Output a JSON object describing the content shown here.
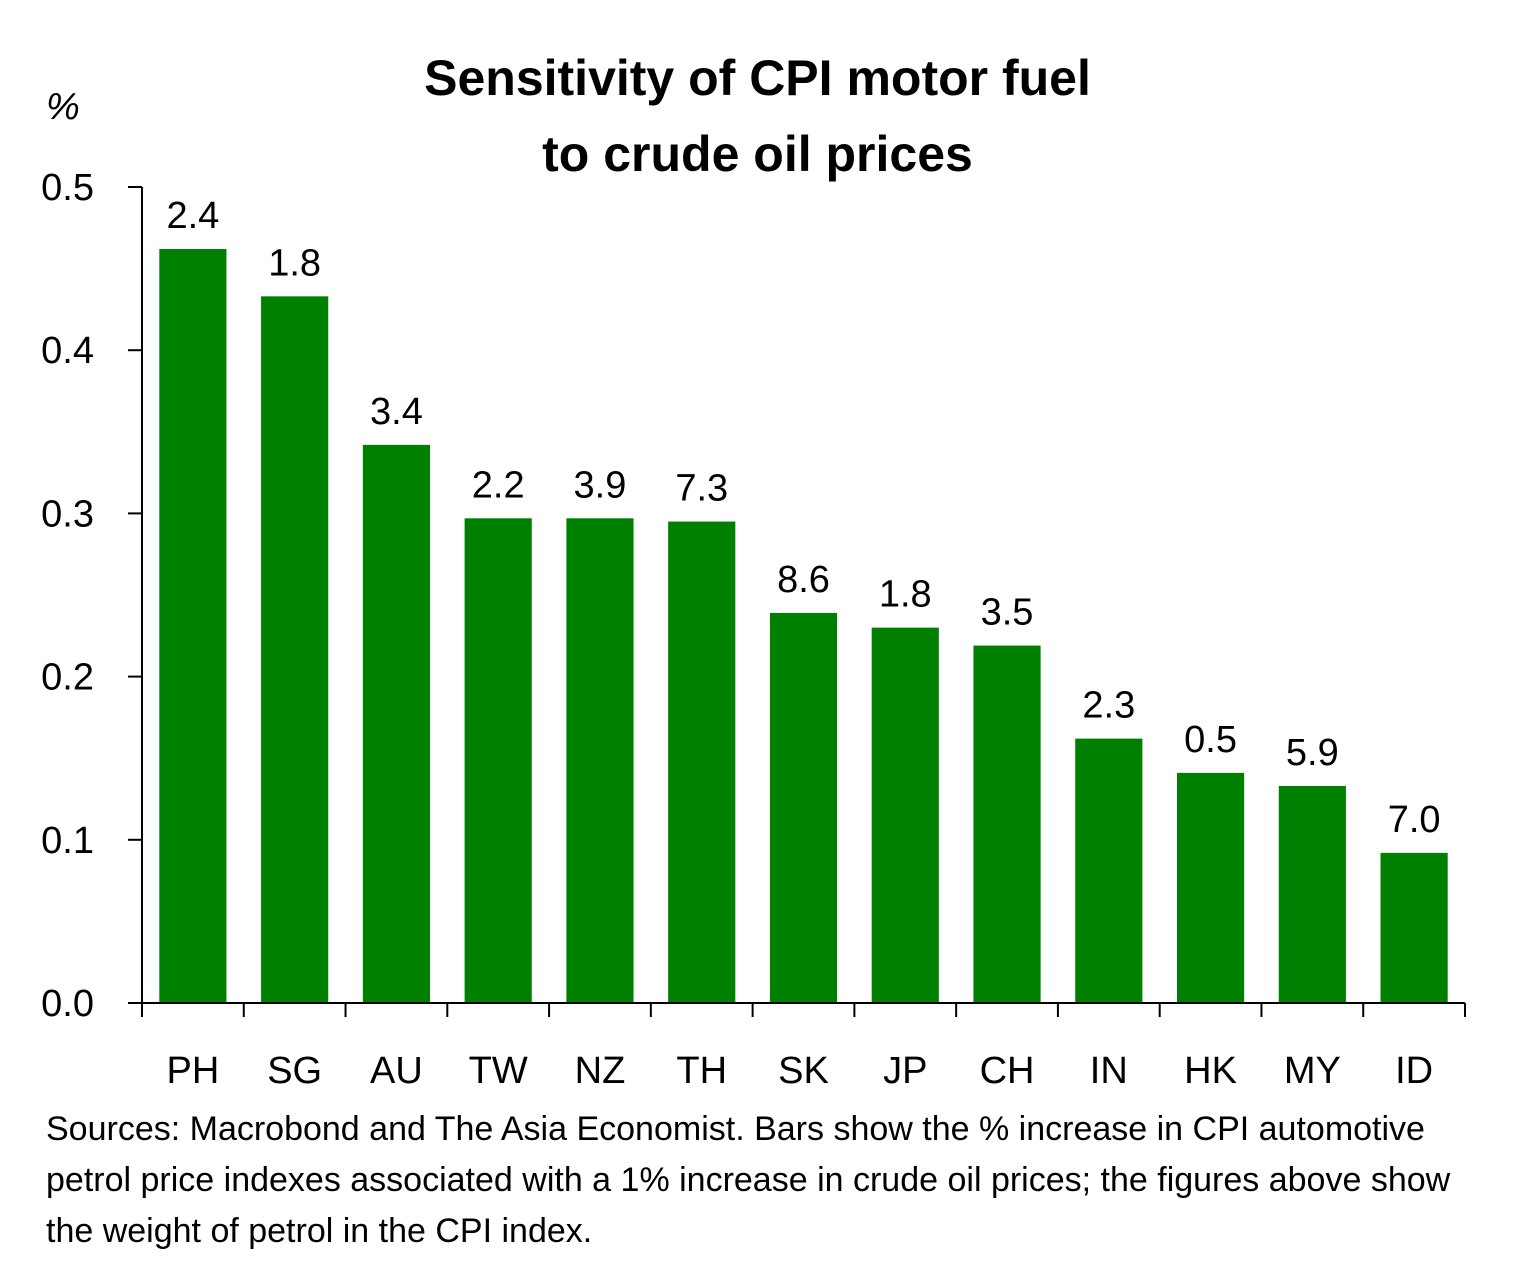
{
  "chart_data": {
    "type": "bar",
    "title_lines": [
      "Sensitivity of CPI motor fuel",
      "to crude oil prices"
    ],
    "y_unit": "%",
    "xlabel": "",
    "ylabel": "%",
    "ylim": [
      0,
      0.5
    ],
    "y_ticks": [
      "0.0",
      "0.1",
      "0.2",
      "0.3",
      "0.4",
      "0.5"
    ],
    "y_tick_values": [
      0,
      0.1,
      0.2,
      0.3,
      0.4,
      0.5
    ],
    "categories": [
      "PH",
      "SG",
      "AU",
      "TW",
      "NZ",
      "TH",
      "SK",
      "JP",
      "CH",
      "IN",
      "HK",
      "MY",
      "ID"
    ],
    "values": [
      0.462,
      0.433,
      0.342,
      0.297,
      0.297,
      0.295,
      0.239,
      0.23,
      0.219,
      0.162,
      0.141,
      0.133,
      0.092
    ],
    "data_labels": [
      "2.4",
      "1.8",
      "3.4",
      "2.2",
      "3.9",
      "7.3",
      "8.6",
      "1.8",
      "3.5",
      "2.3",
      "0.5",
      "5.9",
      "7.0"
    ],
    "bar_color": "#008000",
    "grid": false,
    "legend": "none"
  },
  "source_note": "Sources: Macrobond and The Asia Economist. Bars show the % increase in CPI automotive petrol price indexes associated with a 1% increase in crude oil prices; the figures above show the weight of petrol in the CPI index."
}
